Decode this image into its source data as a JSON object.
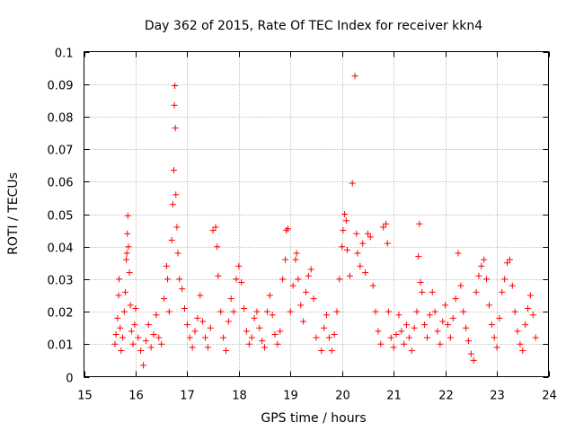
{
  "chart_data": {
    "type": "scatter",
    "title": "Day 362 of 2015, Rate Of TEC Index for receiver kkn4",
    "xlabel": "GPS time / hours",
    "ylabel": "ROTI / TECUs",
    "xlim": [
      15,
      24
    ],
    "ylim": [
      0,
      0.1
    ],
    "xticks": [
      15,
      16,
      17,
      18,
      19,
      20,
      21,
      22,
      23,
      24
    ],
    "xtick_labels": [
      "15",
      "16",
      "17",
      "18",
      "19",
      "20",
      "21",
      "22",
      "23",
      "24"
    ],
    "yticks": [
      0,
      0.01,
      0.02,
      0.03,
      0.04,
      0.05,
      0.06,
      0.07,
      0.08,
      0.09,
      0.1
    ],
    "ytick_labels": [
      "0",
      "0.01",
      "0.02",
      "0.03",
      "0.04",
      "0.05",
      "0.06",
      "0.07",
      "0.08",
      "0.09",
      "0.1"
    ],
    "grid": true,
    "marker": "+",
    "marker_color": "#ff0000",
    "series": [
      {
        "name": "ROTI",
        "points": [
          [
            15.6,
            0.01
          ],
          [
            15.62,
            0.013
          ],
          [
            15.65,
            0.018
          ],
          [
            15.67,
            0.025
          ],
          [
            15.68,
            0.03
          ],
          [
            15.7,
            0.015
          ],
          [
            15.72,
            0.008
          ],
          [
            15.75,
            0.012
          ],
          [
            15.78,
            0.02
          ],
          [
            15.8,
            0.026
          ],
          [
            15.82,
            0.036
          ],
          [
            15.83,
            0.038
          ],
          [
            15.84,
            0.044
          ],
          [
            15.85,
            0.0495
          ],
          [
            15.86,
            0.04
          ],
          [
            15.88,
            0.032
          ],
          [
            15.9,
            0.022
          ],
          [
            15.92,
            0.014
          ],
          [
            15.95,
            0.01
          ],
          [
            15.98,
            0.016
          ],
          [
            16.0,
            0.021
          ],
          [
            16.05,
            0.012
          ],
          [
            16.1,
            0.008
          ],
          [
            16.15,
            0.0035
          ],
          [
            16.2,
            0.011
          ],
          [
            16.25,
            0.016
          ],
          [
            16.3,
            0.009
          ],
          [
            16.35,
            0.013
          ],
          [
            16.4,
            0.019
          ],
          [
            16.45,
            0.012
          ],
          [
            16.5,
            0.01
          ],
          [
            16.55,
            0.024
          ],
          [
            16.6,
            0.034
          ],
          [
            16.62,
            0.03
          ],
          [
            16.65,
            0.02
          ],
          [
            16.7,
            0.042
          ],
          [
            16.72,
            0.053
          ],
          [
            16.74,
            0.0635
          ],
          [
            16.75,
            0.0835
          ],
          [
            16.76,
            0.0895
          ],
          [
            16.77,
            0.0765
          ],
          [
            16.78,
            0.056
          ],
          [
            16.8,
            0.046
          ],
          [
            16.82,
            0.038
          ],
          [
            16.85,
            0.03
          ],
          [
            16.9,
            0.027
          ],
          [
            16.95,
            0.021
          ],
          [
            17.0,
            0.016
          ],
          [
            17.05,
            0.012
          ],
          [
            17.1,
            0.009
          ],
          [
            17.15,
            0.014
          ],
          [
            17.2,
            0.018
          ],
          [
            17.25,
            0.025
          ],
          [
            17.3,
            0.017
          ],
          [
            17.35,
            0.012
          ],
          [
            17.4,
            0.009
          ],
          [
            17.45,
            0.015
          ],
          [
            17.5,
            0.045
          ],
          [
            17.55,
            0.046
          ],
          [
            17.58,
            0.04
          ],
          [
            17.6,
            0.031
          ],
          [
            17.65,
            0.02
          ],
          [
            17.7,
            0.012
          ],
          [
            17.75,
            0.008
          ],
          [
            17.8,
            0.017
          ],
          [
            17.85,
            0.024
          ],
          [
            17.9,
            0.02
          ],
          [
            17.95,
            0.03
          ],
          [
            18.0,
            0.034
          ],
          [
            18.05,
            0.029
          ],
          [
            18.1,
            0.021
          ],
          [
            18.15,
            0.014
          ],
          [
            18.2,
            0.01
          ],
          [
            18.25,
            0.012
          ],
          [
            18.3,
            0.018
          ],
          [
            18.35,
            0.02
          ],
          [
            18.4,
            0.015
          ],
          [
            18.45,
            0.011
          ],
          [
            18.5,
            0.009
          ],
          [
            18.55,
            0.02
          ],
          [
            18.6,
            0.025
          ],
          [
            18.65,
            0.019
          ],
          [
            18.7,
            0.013
          ],
          [
            18.75,
            0.01
          ],
          [
            18.8,
            0.014
          ],
          [
            18.85,
            0.03
          ],
          [
            18.9,
            0.036
          ],
          [
            18.92,
            0.045
          ],
          [
            18.95,
            0.0455
          ],
          [
            19.0,
            0.02
          ],
          [
            19.05,
            0.028
          ],
          [
            19.1,
            0.036
          ],
          [
            19.12,
            0.038
          ],
          [
            19.15,
            0.03
          ],
          [
            19.2,
            0.022
          ],
          [
            19.25,
            0.017
          ],
          [
            19.3,
            0.026
          ],
          [
            19.35,
            0.031
          ],
          [
            19.4,
            0.033
          ],
          [
            19.45,
            0.024
          ],
          [
            19.5,
            0.012
          ],
          [
            19.6,
            0.008
          ],
          [
            19.65,
            0.015
          ],
          [
            19.7,
            0.019
          ],
          [
            19.75,
            0.012
          ],
          [
            19.8,
            0.008
          ],
          [
            19.85,
            0.013
          ],
          [
            19.9,
            0.02
          ],
          [
            19.95,
            0.03
          ],
          [
            20.0,
            0.04
          ],
          [
            20.02,
            0.045
          ],
          [
            20.05,
            0.05
          ],
          [
            20.08,
            0.048
          ],
          [
            20.1,
            0.039
          ],
          [
            20.15,
            0.031
          ],
          [
            20.2,
            0.0595
          ],
          [
            20.25,
            0.0925
          ],
          [
            20.28,
            0.044
          ],
          [
            20.3,
            0.038
          ],
          [
            20.35,
            0.034
          ],
          [
            20.4,
            0.041
          ],
          [
            20.45,
            0.032
          ],
          [
            20.5,
            0.044
          ],
          [
            20.55,
            0.043
          ],
          [
            20.6,
            0.028
          ],
          [
            20.65,
            0.02
          ],
          [
            20.7,
            0.014
          ],
          [
            20.75,
            0.01
          ],
          [
            20.8,
            0.046
          ],
          [
            20.85,
            0.047
          ],
          [
            20.88,
            0.041
          ],
          [
            20.9,
            0.02
          ],
          [
            20.95,
            0.012
          ],
          [
            21.0,
            0.009
          ],
          [
            21.05,
            0.013
          ],
          [
            21.1,
            0.019
          ],
          [
            21.15,
            0.014
          ],
          [
            21.2,
            0.01
          ],
          [
            21.25,
            0.016
          ],
          [
            21.3,
            0.012
          ],
          [
            21.35,
            0.008
          ],
          [
            21.4,
            0.015
          ],
          [
            21.45,
            0.02
          ],
          [
            21.48,
            0.037
          ],
          [
            21.5,
            0.047
          ],
          [
            21.52,
            0.029
          ],
          [
            21.55,
            0.026
          ],
          [
            21.6,
            0.016
          ],
          [
            21.65,
            0.012
          ],
          [
            21.7,
            0.019
          ],
          [
            21.75,
            0.026
          ],
          [
            21.8,
            0.02
          ],
          [
            21.85,
            0.014
          ],
          [
            21.9,
            0.01
          ],
          [
            21.95,
            0.017
          ],
          [
            22.0,
            0.022
          ],
          [
            22.05,
            0.016
          ],
          [
            22.1,
            0.012
          ],
          [
            22.15,
            0.018
          ],
          [
            22.2,
            0.024
          ],
          [
            22.25,
            0.038
          ],
          [
            22.3,
            0.028
          ],
          [
            22.35,
            0.02
          ],
          [
            22.4,
            0.015
          ],
          [
            22.45,
            0.011
          ],
          [
            22.5,
            0.007
          ],
          [
            22.55,
            0.005
          ],
          [
            22.6,
            0.026
          ],
          [
            22.65,
            0.031
          ],
          [
            22.7,
            0.034
          ],
          [
            22.75,
            0.036
          ],
          [
            22.8,
            0.03
          ],
          [
            22.85,
            0.022
          ],
          [
            22.9,
            0.016
          ],
          [
            22.95,
            0.012
          ],
          [
            23.0,
            0.009
          ],
          [
            23.05,
            0.018
          ],
          [
            23.1,
            0.026
          ],
          [
            23.15,
            0.03
          ],
          [
            23.2,
            0.035
          ],
          [
            23.25,
            0.036
          ],
          [
            23.3,
            0.028
          ],
          [
            23.35,
            0.02
          ],
          [
            23.4,
            0.014
          ],
          [
            23.45,
            0.01
          ],
          [
            23.5,
            0.008
          ],
          [
            23.55,
            0.016
          ],
          [
            23.6,
            0.021
          ],
          [
            23.65,
            0.025
          ],
          [
            23.7,
            0.019
          ],
          [
            23.75,
            0.012
          ]
        ]
      }
    ]
  }
}
